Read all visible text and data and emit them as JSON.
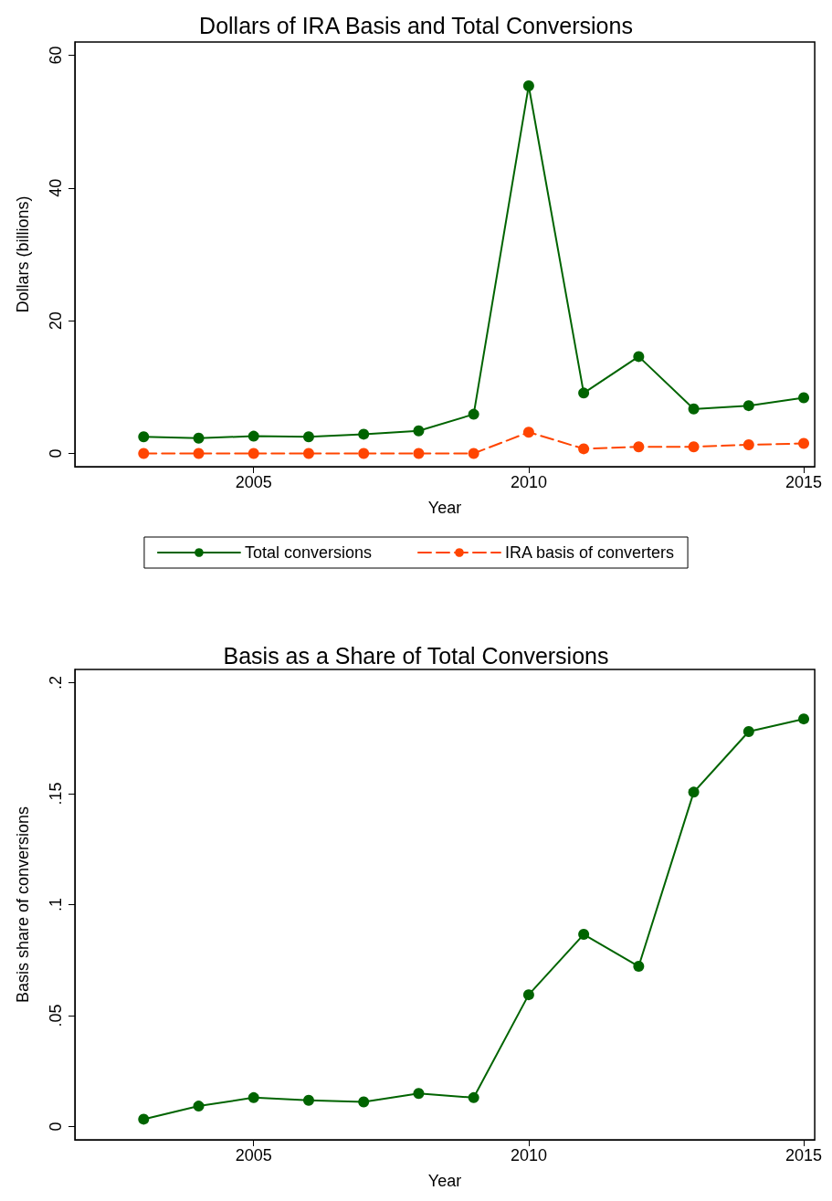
{
  "chart_data": [
    {
      "type": "line",
      "title": "Dollars of IRA Basis and Total Conversions",
      "xlabel": "Year",
      "ylabel": "Dollars (billions)",
      "x": [
        2003,
        2004,
        2005,
        2006,
        2007,
        2008,
        2009,
        2010,
        2011,
        2012,
        2013,
        2014,
        2015
      ],
      "xlim": [
        2001.75,
        2015.2
      ],
      "xticks": [
        2005,
        2010,
        2015
      ],
      "ylim": [
        -2,
        62
      ],
      "yticks": [
        0,
        20,
        40,
        60
      ],
      "grid": false,
      "legend": "bottom",
      "marker": "circle",
      "series": [
        {
          "name": "Total conversions",
          "color": "#006400",
          "line_style": "solid",
          "values": [
            2.5,
            2.3,
            2.6,
            2.5,
            2.9,
            3.4,
            5.9,
            55.4,
            9.1,
            14.6,
            6.7,
            7.2,
            8.4
          ]
        },
        {
          "name": "IRA basis of converters",
          "color": "#ff4500",
          "line_style": "dashed",
          "values": [
            0,
            0,
            0,
            0,
            0,
            0,
            0,
            3.2,
            0.7,
            1.0,
            1.0,
            1.3,
            1.5
          ]
        }
      ]
    },
    {
      "type": "line",
      "title": "Basis as a Share of Total Conversions",
      "xlabel": "Year",
      "ylabel": "Basis share of conversions",
      "x": [
        2003,
        2004,
        2005,
        2006,
        2007,
        2008,
        2009,
        2010,
        2011,
        2012,
        2013,
        2014,
        2015
      ],
      "xlim": [
        2001.75,
        2015.2
      ],
      "xticks": [
        2005,
        2010,
        2015
      ],
      "ylim": [
        -0.006,
        0.206
      ],
      "yticks": [
        0,
        {
          "value": 0.05,
          "label": ".05"
        },
        {
          "value": 0.1,
          "label": ".1"
        },
        {
          "value": 0.15,
          "label": ".15"
        },
        {
          "value": 0.2,
          "label": ".2"
        }
      ],
      "grid": false,
      "legend": false,
      "marker": "circle",
      "series": [
        {
          "color": "#006400",
          "line_style": "solid",
          "values": [
            0.0033,
            0.0092,
            0.013,
            0.0118,
            0.0111,
            0.0149,
            0.013,
            0.0594,
            0.0866,
            0.0722,
            0.1507,
            0.178,
            0.1837
          ]
        }
      ]
    }
  ]
}
